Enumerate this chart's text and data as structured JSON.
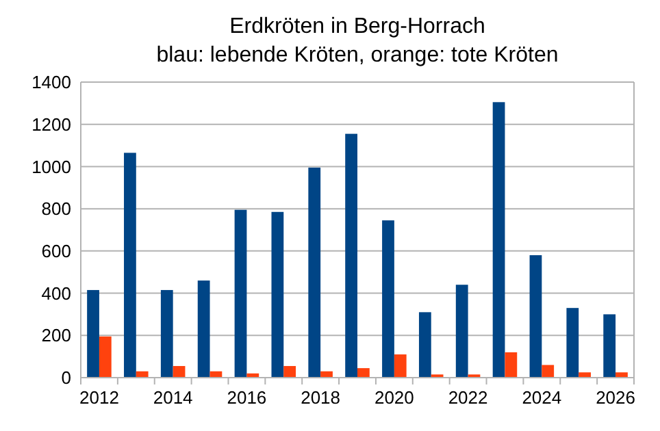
{
  "chart_data": {
    "type": "bar",
    "title": "Erdkröten in Berg-Horrach",
    "subtitle": "blau: lebende Kröten, orange: tote Kröten",
    "categories": [
      "2012",
      null,
      "2014",
      null,
      "2016",
      null,
      "2018",
      null,
      "2020",
      null,
      "2022",
      null,
      "2024",
      null,
      "2026"
    ],
    "series": [
      {
        "color": "#004586",
        "values": [
          415,
          1065,
          415,
          460,
          795,
          785,
          995,
          1155,
          745,
          310,
          440,
          1305,
          580,
          330,
          300
        ]
      },
      {
        "color": "#ff420e",
        "values": [
          195,
          30,
          55,
          30,
          20,
          55,
          30,
          45,
          110,
          15,
          15,
          120,
          60,
          25,
          25
        ]
      }
    ],
    "ylim": [
      0,
      1400
    ],
    "yticks": [
      0,
      200,
      400,
      600,
      800,
      1000,
      1200,
      1400
    ],
    "grid": "y"
  }
}
